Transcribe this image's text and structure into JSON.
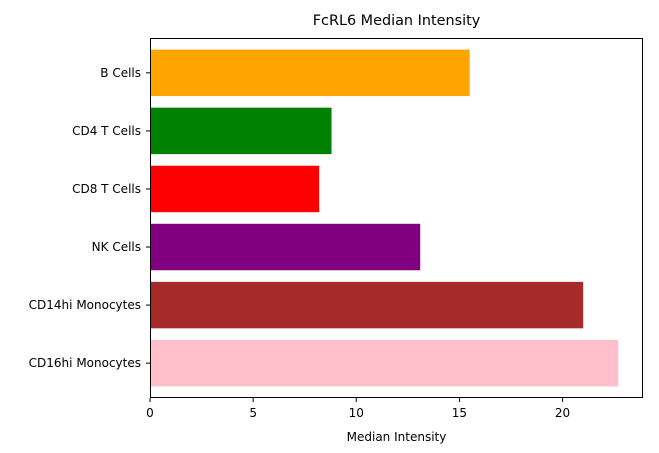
{
  "chart_data": {
    "type": "bar",
    "orientation": "horizontal",
    "title": "FcRL6 Median Intensity",
    "xlabel": "Median Intensity",
    "ylabel": "",
    "categories": [
      "B Cells",
      "CD4 T Cells",
      "CD8 T Cells",
      "NK Cells",
      "CD14hi Monocytes",
      "CD16hi Monocytes"
    ],
    "values": [
      15.5,
      8.8,
      8.2,
      13.1,
      21.0,
      22.7
    ],
    "colors": [
      "#ffa500",
      "#008000",
      "#ff0000",
      "#800080",
      "#a52a2a",
      "#ffc0cb"
    ],
    "xlim": [
      0,
      23.9
    ],
    "xticks": [
      0,
      5,
      10,
      15,
      20
    ],
    "grid": false,
    "legend": "none"
  }
}
